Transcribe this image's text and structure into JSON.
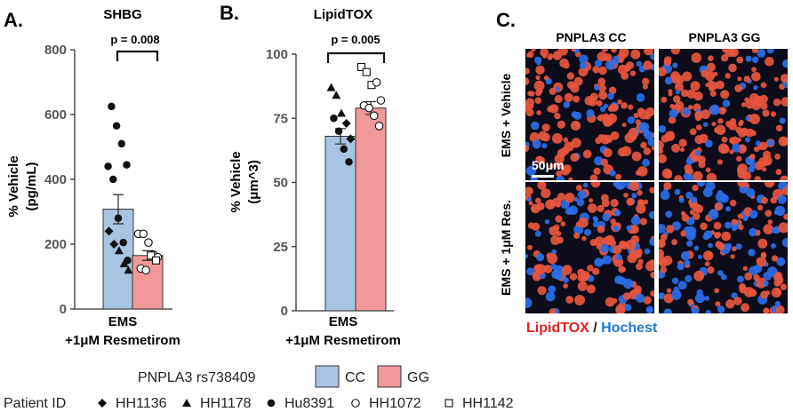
{
  "panels": {
    "a": {
      "letter": "A.",
      "title": "SHBG"
    },
    "b": {
      "letter": "B.",
      "title": "LipidTOX"
    },
    "c": {
      "letter": "C."
    }
  },
  "colors": {
    "CC": "#a9c4e0",
    "GG": "#f0989b",
    "red": "#e02020",
    "blue": "#1a7ad4"
  },
  "chart_data": [
    {
      "type": "bar",
      "title": "SHBG",
      "ylabel": [
        "% Vehicle",
        "(pg/mL)"
      ],
      "xlabel": [
        "EMS",
        "+1μM Resmetirom"
      ],
      "ylim": [
        0,
        800
      ],
      "yticks": [
        "0",
        "200",
        "400",
        "600",
        "800"
      ],
      "pvalue": "p = 0.008",
      "series": [
        {
          "name": "CC",
          "value": 308,
          "sem": 45,
          "points": [
            {
              "patient": "HH1136",
              "y": 240
            },
            {
              "patient": "HH1136",
              "y": 200
            },
            {
              "patient": "HH1178",
              "y": 180
            },
            {
              "patient": "HH1178",
              "y": 140
            },
            {
              "patient": "HH1178",
              "y": 120
            },
            {
              "patient": "Hu8391",
              "y": 625
            },
            {
              "patient": "Hu8391",
              "y": 565
            },
            {
              "patient": "Hu8391",
              "y": 510
            },
            {
              "patient": "Hu8391",
              "y": 445
            },
            {
              "patient": "Hu8391",
              "y": 440
            },
            {
              "patient": "Hu8391",
              "y": 400
            },
            {
              "patient": "Hu8391",
              "y": 280
            },
            {
              "patient": "Hu8391",
              "y": 205
            },
            {
              "patient": "Hu8391",
              "y": 150
            }
          ]
        },
        {
          "name": "GG",
          "value": 165,
          "sem": 15,
          "points": [
            {
              "patient": "HH1072",
              "y": 232
            },
            {
              "patient": "HH1072",
              "y": 232
            },
            {
              "patient": "HH1072",
              "y": 205
            },
            {
              "patient": "HH1072",
              "y": 168
            },
            {
              "patient": "HH1072",
              "y": 160
            },
            {
              "patient": "HH1072",
              "y": 125
            },
            {
              "patient": "HH1072",
              "y": 120
            },
            {
              "patient": "HH1142",
              "y": 165
            },
            {
              "patient": "HH1142",
              "y": 150
            }
          ]
        }
      ]
    },
    {
      "type": "bar",
      "title": "LipidTOX",
      "ylabel": [
        "% Vehicle",
        "(μm^3)"
      ],
      "xlabel": [
        "EMS",
        "+1μM Resmetirom"
      ],
      "ylim": [
        0,
        100
      ],
      "yticks": [
        "0",
        "25",
        "50",
        "75",
        "100"
      ],
      "pvalue": "p = 0.005",
      "series": [
        {
          "name": "CC",
          "value": 68,
          "sem": 3,
          "points": [
            {
              "patient": "HH1178",
              "y": 87
            },
            {
              "patient": "HH1178",
              "y": 84
            },
            {
              "patient": "HH1178",
              "y": 77
            },
            {
              "patient": "HH1136",
              "y": 73
            },
            {
              "patient": "HH1136",
              "y": 67
            },
            {
              "patient": "Hu8391",
              "y": 75
            },
            {
              "patient": "Hu8391",
              "y": 70
            },
            {
              "patient": "Hu8391",
              "y": 63
            },
            {
              "patient": "Hu8391",
              "y": 58
            }
          ]
        },
        {
          "name": "GG",
          "value": 79,
          "sem": 2.5,
          "points": [
            {
              "patient": "HH1142",
              "y": 95
            },
            {
              "patient": "HH1142",
              "y": 93
            },
            {
              "patient": "HH1142",
              "y": 88
            },
            {
              "patient": "HH1072",
              "y": 89
            },
            {
              "patient": "HH1072",
              "y": 82
            },
            {
              "patient": "HH1072",
              "y": 80
            },
            {
              "patient": "HH1072",
              "y": 79
            },
            {
              "patient": "HH1072",
              "y": 76
            },
            {
              "patient": "HH1072",
              "y": 72
            }
          ]
        }
      ]
    }
  ],
  "micrographs": {
    "columns": [
      "PNPLA3 CC",
      "PNPLA3 GG"
    ],
    "rows": [
      "EMS + Vehicle",
      "EMS + 1μM Res."
    ],
    "scale_bar": "50μm",
    "caption_red": "LipidTOX",
    "caption_sep": " / ",
    "caption_blue": "Hochest"
  },
  "legend": {
    "genotype_label": "PNPLA3 rs738409",
    "genotypes": [
      "CC",
      "GG"
    ],
    "patient_label": "Patient ID",
    "patients": [
      {
        "id": "HH1136",
        "marker": "diamond"
      },
      {
        "id": "HH1178",
        "marker": "triangle"
      },
      {
        "id": "Hu8391",
        "marker": "circle-filled"
      },
      {
        "id": "HH1072",
        "marker": "circle-open"
      },
      {
        "id": "HH1142",
        "marker": "square-open"
      }
    ]
  }
}
